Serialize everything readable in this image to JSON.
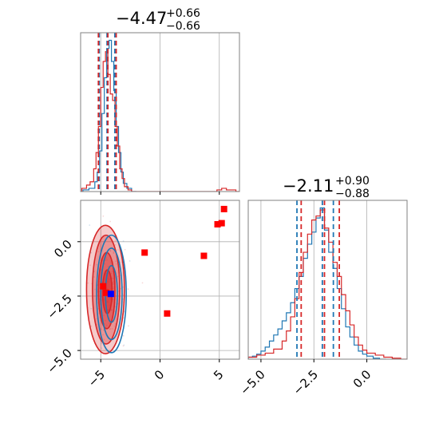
{
  "chart_data": {
    "type": "corner",
    "grid": true,
    "colors": {
      "blue": "#1f77b4",
      "red": "#d62728",
      "red_square": "#ff0000",
      "blue_square": "#0000ff",
      "grid": "#b0b0b0"
    },
    "panels": {
      "hist_x": {
        "type": "histogram",
        "title": {
          "value": "−4.47",
          "plus": "+0.66",
          "minus": "−0.66"
        },
        "xlim": [
          -6.7,
          6.7
        ],
        "quantiles_blue": [
          -5.13,
          -4.47,
          -3.81
        ],
        "quantiles_red": [
          -5.2,
          -4.4,
          -3.7
        ],
        "series": [
          {
            "color": "blue",
            "bins": [
              -6.5,
              -6.0,
              -5.5,
              -5.3,
              -5.1,
              -4.9,
              -4.7,
              -4.5,
              -4.3,
              -4.1,
              -3.9,
              -3.7,
              -3.5,
              -3.3,
              -3.1,
              -2.8,
              -2.4
            ],
            "counts": [
              1,
              2,
              6,
              12,
              25,
              48,
              70,
              88,
              93,
              80,
              62,
              40,
              24,
              12,
              5,
              2,
              0
            ]
          },
          {
            "color": "red",
            "bins": [
              -6.6,
              -6.2,
              -5.9,
              -5.6,
              -5.4,
              -5.2,
              -5.0,
              -4.8,
              -4.6,
              -4.4,
              -4.2,
              -4.0,
              -3.8,
              -3.6,
              -3.4,
              -3.2,
              -3.0,
              -2.7,
              -2.4,
              4.8,
              5.2,
              5.6,
              6.0,
              6.4
            ],
            "counts": [
              2,
              4,
              6,
              14,
              24,
              40,
              64,
              80,
              86,
              72,
              60,
              56,
              40,
              28,
              14,
              8,
              3,
              1,
              0,
              1,
              2,
              1,
              1,
              0
            ]
          }
        ]
      },
      "hist_y": {
        "type": "histogram",
        "title": {
          "value": "−2.11",
          "plus": "+0.90",
          "minus": "−0.88"
        },
        "xlim": [
          -5.6,
          1.9
        ],
        "xticks": [
          "−5.0",
          "−2.5",
          "0.0"
        ],
        "xtick_values": [
          -5.0,
          -2.5,
          0.0
        ],
        "quantiles_blue": [
          -3.3,
          -2.1,
          -1.58
        ],
        "quantiles_red": [
          -3.1,
          -2.0,
          -1.3
        ],
        "series": [
          {
            "color": "blue",
            "bins": [
              -5.6,
              -5.4,
              -5.2,
              -5.0,
              -4.8,
              -4.6,
              -4.4,
              -4.2,
              -4.0,
              -3.8,
              -3.6,
              -3.4,
              -3.2,
              -3.0,
              -2.8,
              -2.6,
              -2.4,
              -2.2,
              -2.0,
              -1.8,
              -1.6,
              -1.4,
              -1.2,
              -1.0,
              -0.8,
              -0.6,
              -0.4,
              -0.2,
              0.0,
              0.3,
              0.6
            ],
            "counts": [
              2,
              3,
              5,
              8,
              12,
              18,
              24,
              30,
              38,
              46,
              56,
              70,
              82,
              100,
              114,
              126,
              140,
              150,
              128,
              106,
              90,
              70,
              50,
              32,
              22,
              14,
              8,
              5,
              3,
              1,
              0
            ]
          },
          {
            "color": "red",
            "bins": [
              -5.6,
              -5.2,
              -4.8,
              -4.4,
              -4.0,
              -3.8,
              -3.6,
              -3.4,
              -3.2,
              -3.0,
              -2.8,
              -2.6,
              -2.4,
              -2.2,
              -2.0,
              -1.8,
              -1.6,
              -1.4,
              -1.2,
              -1.0,
              -0.8,
              -0.6,
              -0.4,
              -0.2,
              0.0,
              0.4,
              0.8,
              1.2,
              1.6
            ],
            "counts": [
              2,
              4,
              6,
              10,
              18,
              28,
              42,
              60,
              86,
              106,
              124,
              138,
              142,
              148,
              130,
              116,
              96,
              82,
              64,
              48,
              34,
              22,
              14,
              9,
              6,
              4,
              2,
              1,
              0
            ]
          }
        ]
      },
      "scatter_2d": {
        "type": "scatter",
        "xlim": [
          -6.7,
          6.7
        ],
        "ylim": [
          -5.4,
          1.9
        ],
        "xticks": [
          "−5",
          "0",
          "5"
        ],
        "xtick_values": [
          -5,
          0,
          5
        ],
        "yticks": [
          "0.0",
          "−2.5",
          "−5.0"
        ],
        "ytick_values": [
          0.0,
          -2.5,
          -5.0
        ],
        "contours_red": [
          {
            "cx": -4.6,
            "cy": -2.2,
            "rx": 1.6,
            "ry": 2.95,
            "fill_opacity": 0.45
          },
          {
            "cx": -4.55,
            "cy": -2.2,
            "rx": 1.15,
            "ry": 2.5,
            "fill_opacity": 0.6
          },
          {
            "cx": -4.5,
            "cy": -2.25,
            "rx": 0.7,
            "ry": 1.75,
            "fill_opacity": 0.8
          },
          {
            "cx": -4.45,
            "cy": -2.3,
            "rx": 0.4,
            "ry": 1.0,
            "fill_opacity": 0.9
          }
        ],
        "contours_blue": [
          {
            "cx": -4.1,
            "cy": -2.4,
            "rx": 1.25,
            "ry": 2.7
          },
          {
            "cx": -4.1,
            "cy": -2.4,
            "rx": 0.9,
            "ry": 2.1
          },
          {
            "cx": -4.1,
            "cy": -2.4,
            "rx": 0.5,
            "ry": 1.3
          }
        ],
        "red_points": [
          {
            "x": 5.4,
            "y": 1.5
          },
          {
            "x": 4.85,
            "y": 0.8
          },
          {
            "x": 5.2,
            "y": 0.85
          },
          {
            "x": -1.3,
            "y": -0.5
          },
          {
            "x": 3.7,
            "y": -0.65
          },
          {
            "x": -4.8,
            "y": -2.05
          },
          {
            "x": -4.55,
            "y": -2.35
          },
          {
            "x": 0.6,
            "y": -3.3
          }
        ],
        "blue_points": [
          {
            "x": -4.15,
            "y": -2.4
          }
        ]
      }
    }
  }
}
